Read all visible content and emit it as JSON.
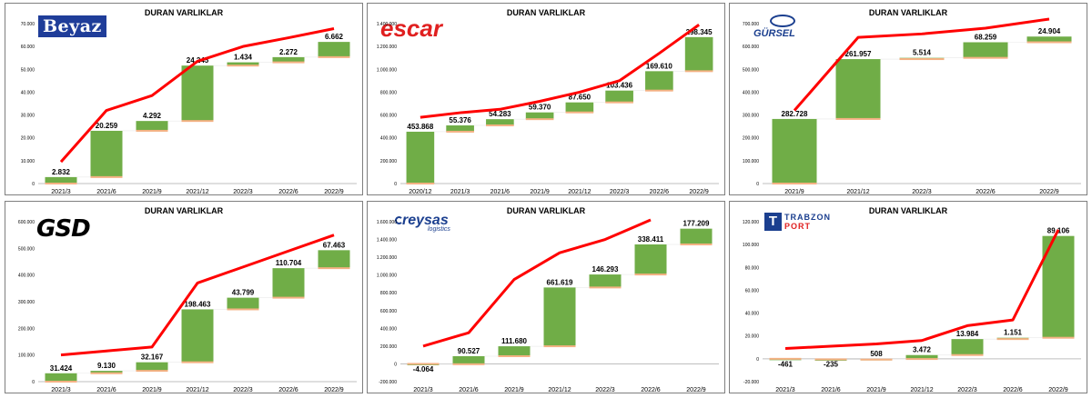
{
  "colors": {
    "bar": "#70ad47",
    "line": "#ff0000",
    "cap": "#f4b183",
    "axis": "#bfbfbf"
  },
  "chart_data": [
    {
      "type": "bar",
      "title": "DURAN VARLIKLAR",
      "logo": "Beyaz",
      "categories": [
        "2021/3",
        "2021/6",
        "2021/9",
        "2021/12",
        "2022/3",
        "2022/6",
        "2022/9"
      ],
      "values": [
        2832,
        20259,
        4292,
        24245,
        1434,
        2272,
        6662
      ],
      "labels": [
        "2.832",
        "20.259",
        "4.292",
        "24.245",
        "1.434",
        "2.272",
        "6.662"
      ],
      "line": [
        9500,
        32000,
        38500,
        53500,
        60000,
        63800,
        67800
      ],
      "ylim": [
        0,
        70000
      ],
      "ystep": 10000,
      "yticks": [
        "0",
        "10.000",
        "20.000",
        "30.000",
        "40.000",
        "50.000",
        "60.000",
        "70.000"
      ]
    },
    {
      "type": "bar",
      "title": "DURAN VARLIKLAR",
      "logo": "escar",
      "categories": [
        "2020/12",
        "2021/3",
        "2021/6",
        "2021/9",
        "2021/12",
        "2022/3",
        "2022/6",
        "2022/9"
      ],
      "values": [
        453868,
        55376,
        54283,
        59370,
        87650,
        103436,
        169610,
        298345
      ],
      "labels": [
        "453.868",
        "55.376",
        "54.283",
        "59.370",
        "87.650",
        "103.436",
        "169.610",
        "298.345"
      ],
      "line": [
        580000,
        620000,
        650000,
        720000,
        800000,
        900000,
        1140000,
        1390000
      ],
      "ylim": [
        0,
        1400000
      ],
      "ystep": 200000,
      "yticks": [
        "0",
        "200.000",
        "400.000",
        "600.000",
        "800.000",
        "1.000.000",
        "1.200.000",
        "1.400.000"
      ]
    },
    {
      "type": "bar",
      "title": "DURAN VARLIKLAR",
      "logo": "GÜRSEL",
      "categories": [
        "2021/9",
        "2021/12",
        "2022/3",
        "2022/6",
        "2022/9"
      ],
      "values": [
        282728,
        261957,
        5514,
        68259,
        24904
      ],
      "labels": [
        "282.728",
        "261.957",
        "5.514",
        "68.259",
        "24.904"
      ],
      "line": [
        320000,
        640000,
        655000,
        680000,
        720000
      ],
      "ylim": [
        0,
        700000
      ],
      "ystep": 100000,
      "yticks": [
        "0",
        "100.000",
        "200.000",
        "300.000",
        "400.000",
        "500.000",
        "600.000",
        "700.000"
      ]
    },
    {
      "type": "bar",
      "title": "DURAN VARLIKLAR",
      "logo": "GSD",
      "categories": [
        "2021/3",
        "2021/6",
        "2021/9",
        "2021/12",
        "2022/3",
        "2022/6",
        "2022/9"
      ],
      "values": [
        31424,
        9130,
        32167,
        198463,
        43799,
        110704,
        67463
      ],
      "labels": [
        "31.424",
        "9.130",
        "32.167",
        "198.463",
        "43.799",
        "110.704",
        "67.463"
      ],
      "line": [
        100000,
        115000,
        130000,
        370000,
        430000,
        490000,
        550000
      ],
      "ylim": [
        0,
        600000
      ],
      "ystep": 100000,
      "yticks": [
        "0",
        "100.000",
        "200.000",
        "300.000",
        "400.000",
        "500.000",
        "600.000"
      ]
    },
    {
      "type": "bar",
      "title": "DURAN VARLIKLAR",
      "logo": "reysas",
      "categories": [
        "2021/3",
        "2021/6",
        "2021/9",
        "2021/12",
        "2022/3",
        "2022/6",
        "2022/9"
      ],
      "values": [
        -4064,
        90527,
        111680,
        661619,
        146293,
        338411,
        177209
      ],
      "labels": [
        "-4.064",
        "90.527",
        "111.680",
        "661.619",
        "146.293",
        "338.411",
        "177.209"
      ],
      "line": [
        200000,
        350000,
        950000,
        1250000,
        1400000,
        1620000,
        null
      ],
      "ylim": [
        -200000,
        1600000
      ],
      "ystep": 200000,
      "yticks": [
        "-200.000",
        "0",
        "200.000",
        "400.000",
        "600.000",
        "800.000",
        "1.000.000",
        "1.200.000",
        "1.400.000",
        "1.600.000"
      ]
    },
    {
      "type": "bar",
      "title": "DURAN VARLIKLAR",
      "logo": "TRABZON PORT",
      "categories": [
        "2021/3",
        "2021/6",
        "2021/9",
        "2021/12",
        "2022/3",
        "2022/6",
        "2022/9"
      ],
      "values": [
        -461,
        -235,
        508,
        3472,
        13984,
        1151,
        89106
      ],
      "labels": [
        "-461",
        "-235",
        "508",
        "3.472",
        "13.984",
        "1.151",
        "89.106"
      ],
      "line": [
        9000,
        11000,
        13000,
        16000,
        29000,
        34000,
        113000
      ],
      "ylim": [
        -20000,
        120000
      ],
      "ystep": 20000,
      "yticks": [
        "-20.000",
        "0",
        "20.000",
        "40.000",
        "60.000",
        "80.000",
        "100.000",
        "120.000"
      ]
    }
  ]
}
